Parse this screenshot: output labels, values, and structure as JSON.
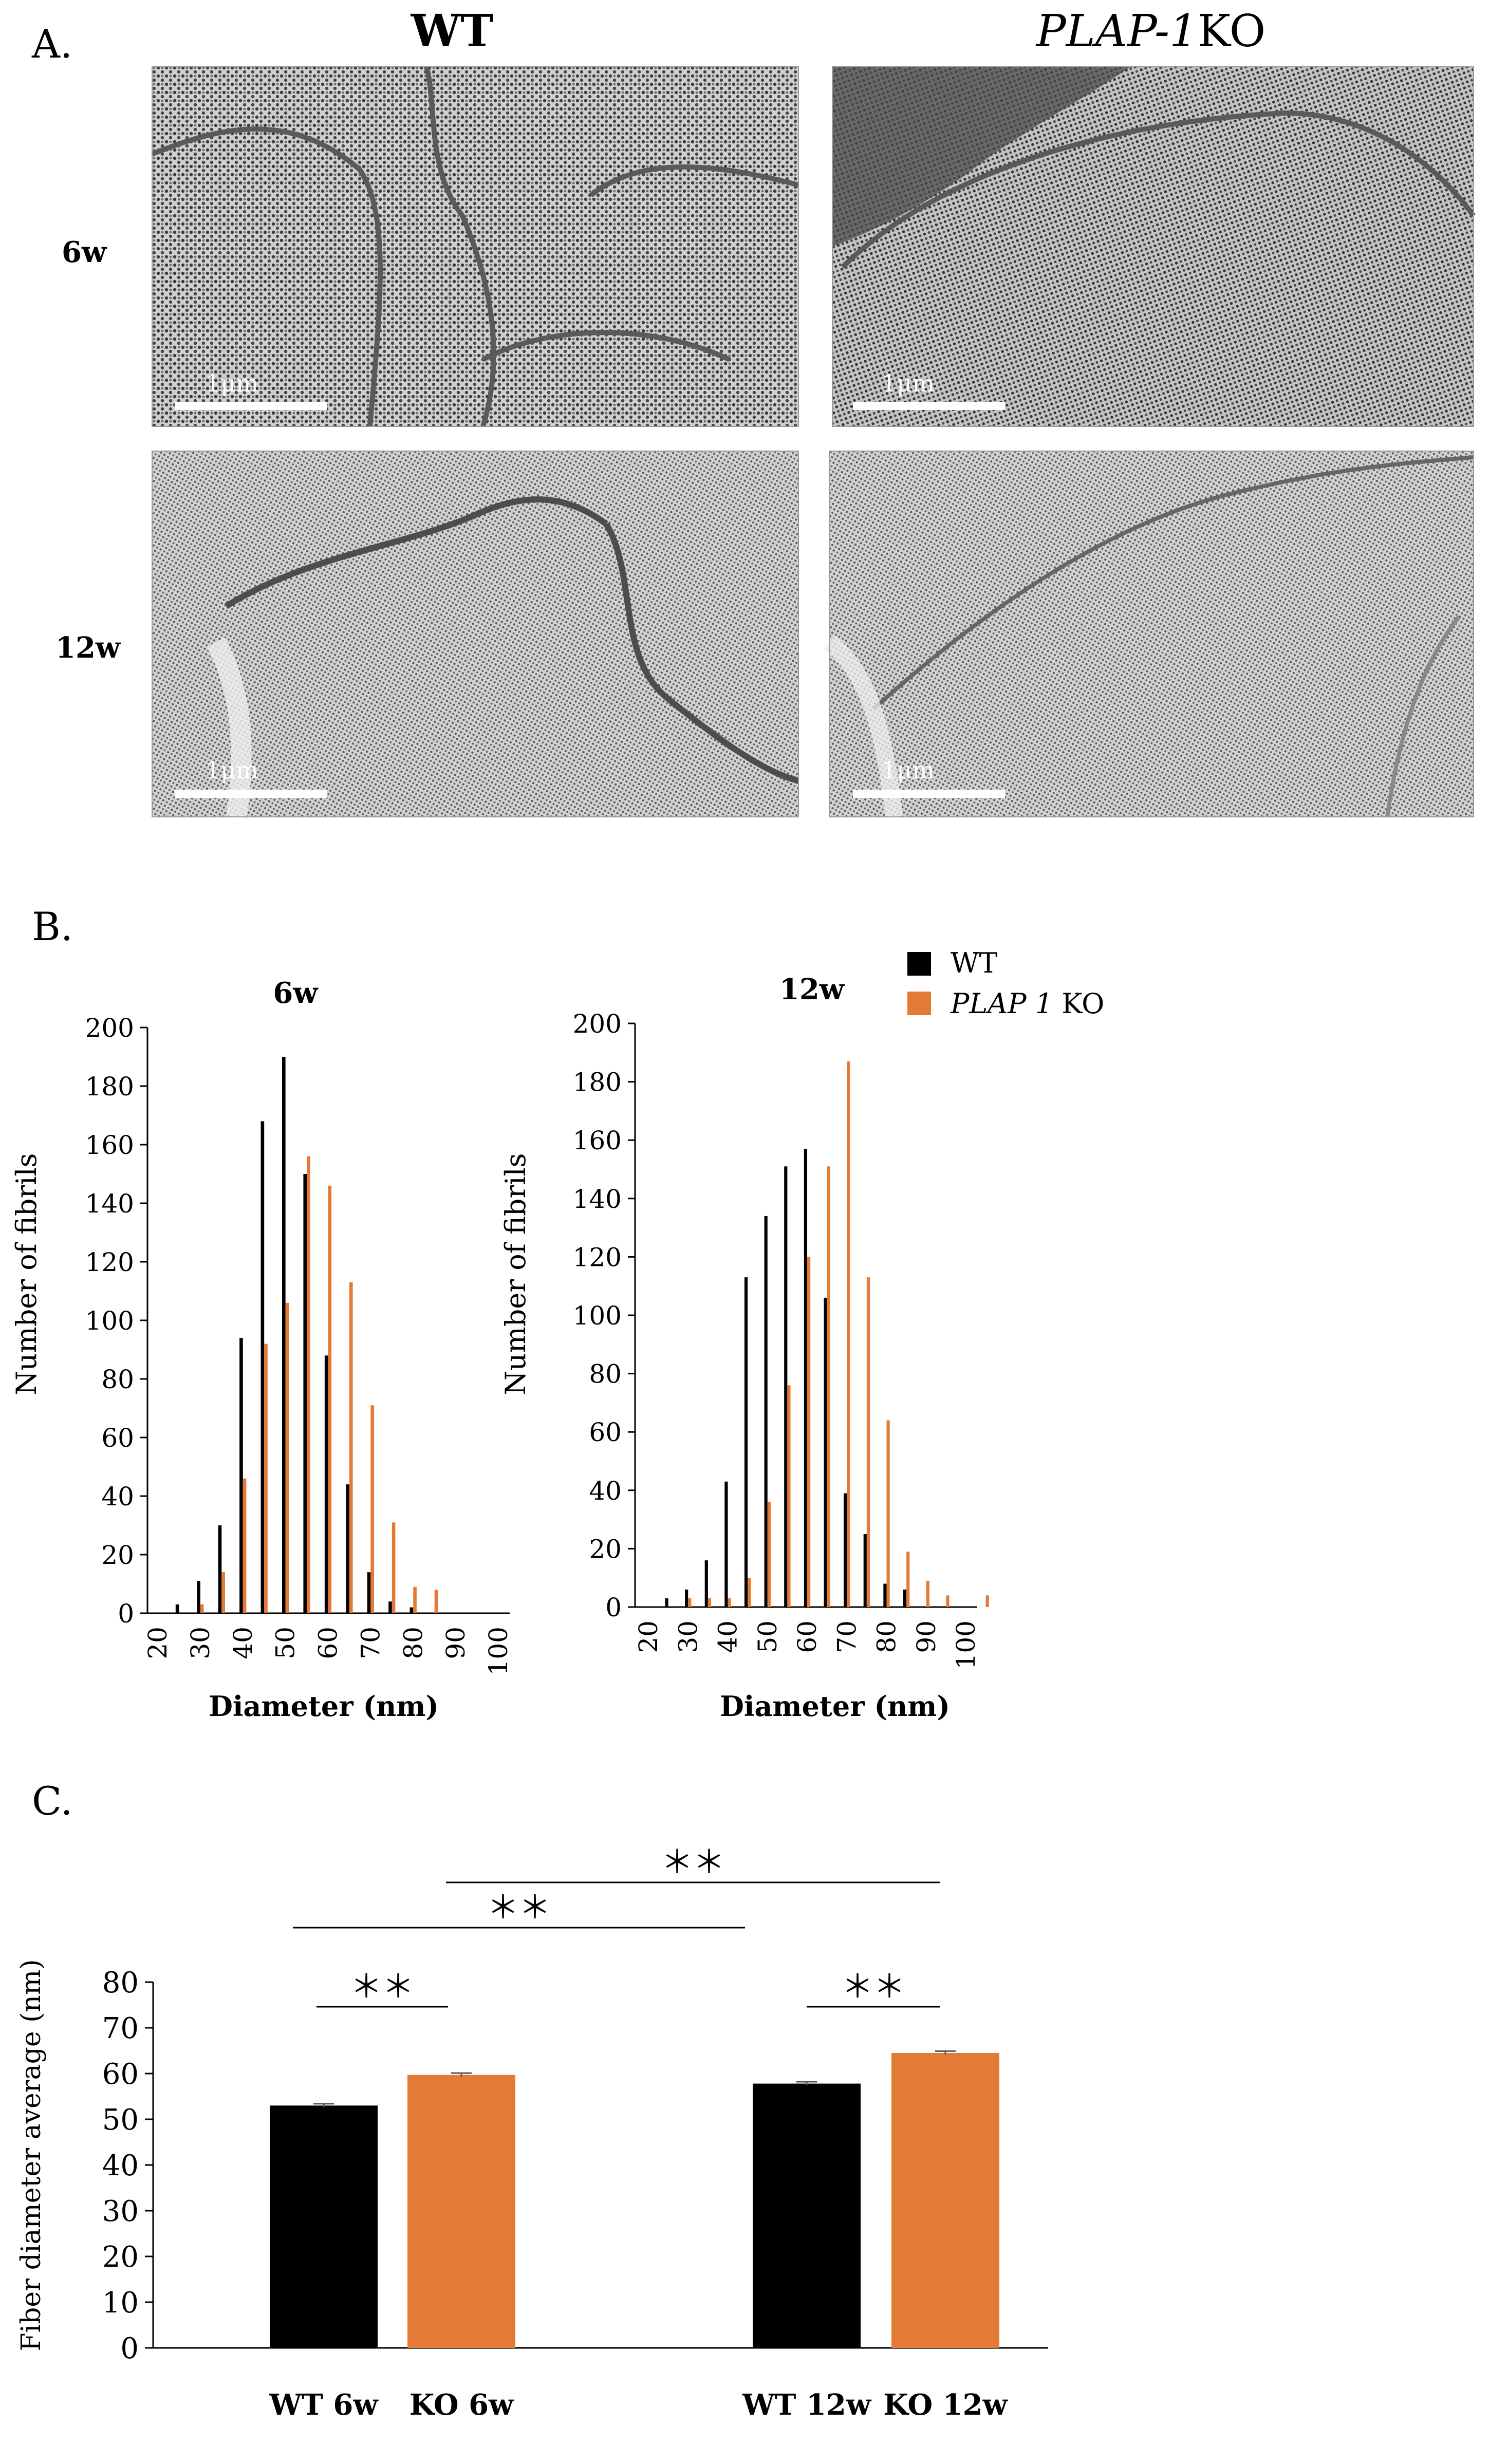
{
  "panelA": {
    "label": "A.",
    "columns": [
      "WT",
      "PLAP-1KO"
    ],
    "ko_italic": "PLAP-1",
    "ko_suffix": "KO",
    "rows": [
      "6w",
      "12w"
    ],
    "scale_bar_label": "1μm"
  },
  "panelB": {
    "label": "B.",
    "legend": [
      {
        "name": "WT",
        "color": "#000000"
      },
      {
        "name": "PLAP 1 KO",
        "italic": "PLAP 1",
        "suffix": "KO",
        "color": "#E37A35"
      }
    ]
  },
  "panelC": {
    "label": "C.",
    "significance_mark": "＊＊"
  },
  "chart_data": [
    {
      "type": "bar",
      "title": "6w",
      "xlabel": "Diameter (nm)",
      "ylabel": "Number of fibrils",
      "ylim": [
        0,
        200
      ],
      "yticks": [
        0,
        20,
        40,
        60,
        80,
        100,
        120,
        140,
        160,
        180,
        200
      ],
      "categories": [
        "20",
        "25",
        "30",
        "35",
        "40",
        "45",
        "50",
        "55",
        "60",
        "65",
        "70",
        "75",
        "80",
        "85",
        "90",
        "95",
        "100"
      ],
      "xtick_labels": [
        "20",
        "30",
        "40",
        "50",
        "60",
        "70",
        "80",
        "90",
        "100"
      ],
      "series": [
        {
          "name": "WT",
          "color": "#000000",
          "values": [
            0,
            3,
            11,
            30,
            94,
            168,
            190,
            150,
            88,
            44,
            14,
            4,
            2,
            0,
            0,
            0,
            0
          ]
        },
        {
          "name": "PLAP 1 KO",
          "color": "#E37A35",
          "values": [
            0,
            0,
            3,
            14,
            46,
            92,
            106,
            156,
            146,
            113,
            71,
            31,
            9,
            8,
            0,
            0,
            0
          ]
        }
      ]
    },
    {
      "type": "bar",
      "title": "12w",
      "xlabel": "Diameter (nm)",
      "ylabel": "Number of fibrils",
      "ylim": [
        0,
        200
      ],
      "yticks": [
        0,
        20,
        40,
        60,
        80,
        100,
        120,
        140,
        160,
        180,
        200
      ],
      "categories": [
        "20",
        "25",
        "30",
        "35",
        "40",
        "45",
        "50",
        "55",
        "60",
        "65",
        "70",
        "75",
        "80",
        "85",
        "90",
        "95",
        "100",
        "105"
      ],
      "xtick_labels": [
        "20",
        "30",
        "40",
        "50",
        "60",
        "70",
        "80",
        "90",
        "100"
      ],
      "series": [
        {
          "name": "WT",
          "color": "#000000",
          "values": [
            0,
            3,
            6,
            16,
            43,
            113,
            134,
            151,
            157,
            106,
            39,
            25,
            8,
            6,
            0,
            0,
            0,
            0
          ]
        },
        {
          "name": "PLAP 1 KO",
          "color": "#E37A35",
          "values": [
            0,
            0,
            3,
            3,
            3,
            10,
            36,
            76,
            120,
            151,
            187,
            113,
            64,
            19,
            9,
            4,
            0,
            4
          ]
        }
      ]
    },
    {
      "type": "bar",
      "xlabel": "",
      "ylabel": "Fiber diameter average (nm)",
      "ylim": [
        0,
        80
      ],
      "yticks": [
        0,
        10,
        20,
        30,
        40,
        50,
        60,
        70,
        80
      ],
      "categories": [
        "WT 6w",
        "KO 6w",
        "WT 12w",
        "KO 12w"
      ],
      "values": [
        53,
        59.7,
        57.8,
        64.5
      ],
      "errors": [
        0.4,
        0.4,
        0.4,
        0.4
      ],
      "colors": [
        "#000000",
        "#E37A35",
        "#000000",
        "#E37A35"
      ],
      "significance": [
        {
          "from": 0,
          "to": 1,
          "label": "＊＊"
        },
        {
          "from": 0,
          "to": 2,
          "label": "＊＊"
        },
        {
          "from": 1,
          "to": 3,
          "label": "＊＊"
        },
        {
          "from": 2,
          "to": 3,
          "label": "＊＊"
        }
      ]
    }
  ]
}
